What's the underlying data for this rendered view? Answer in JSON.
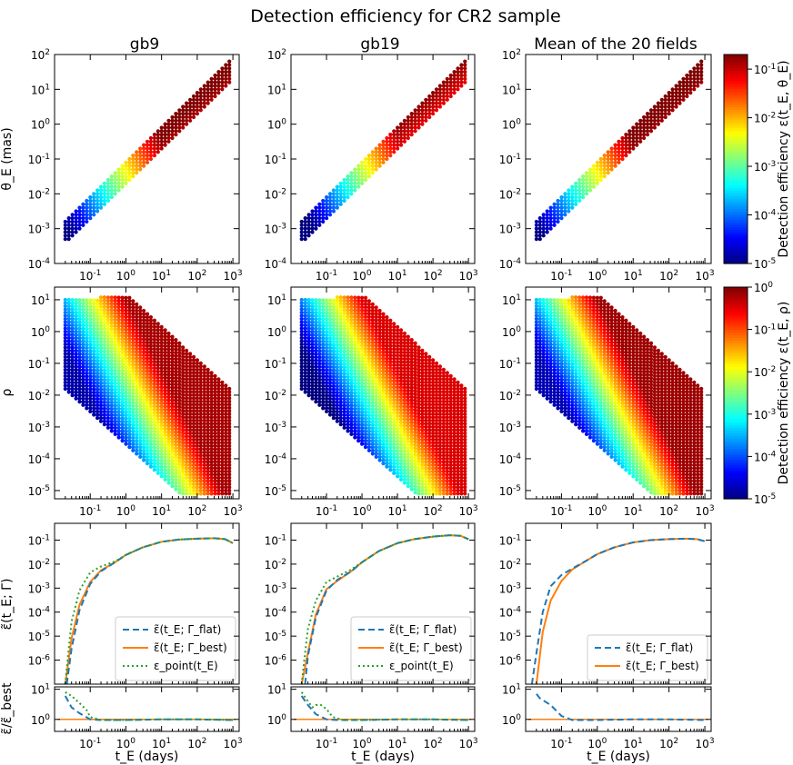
{
  "title": "Detection efficiency for CR2 sample",
  "columns": [
    "gb9",
    "gb19",
    "Mean of the 20 fields"
  ],
  "labels": {
    "xlabel": "t_E (days)",
    "row1_ylabel": "θ_E (mas)",
    "row2_ylabel": "ρ",
    "row3_ylabel": "ε̃(t_E; Γ)",
    "row4_ylabel": "ε̃/ε̃_best",
    "cbar1_label": "Detection efficiency ε(t_E, θ_E)",
    "cbar2_label": "Detection efficiency ε(t_E, ρ)"
  },
  "legend": {
    "flat": "ε̃(t_E; Γ_flat)",
    "best": "ε̃(t_E; Γ_best)",
    "point": "ε_point(t_E)"
  },
  "colors": {
    "flat": "#1f77b4",
    "best": "#ff7f0e",
    "point": "#2ca02c",
    "colormap": "jet"
  },
  "chart_data": [
    {
      "type": "heatmap",
      "panel": "theta_E vs t_E",
      "xscale": "log",
      "yscale": "log",
      "xlim": [
        0.01,
        1500
      ],
      "ylim": [
        0.0001,
        100
      ],
      "xticks": [
        "10^-1",
        "10^0",
        "10^1",
        "10^2",
        "10^3"
      ],
      "yticks": [
        "10^-4",
        "10^-3",
        "10^-2",
        "10^-1",
        "10^0",
        "10^1",
        "10^2"
      ],
      "colorbar": {
        "ticks": [
          "10^-5",
          "10^-4",
          "10^-3",
          "10^-2",
          "10^-1"
        ],
        "range": [
          1e-05,
          0.2
        ]
      },
      "grid_band": {
        "tE_range": [
          0.02,
          1000
        ],
        "log_thetaE_over_tE_range": [
          -1.7,
          -1.1
        ],
        "theta_E_min": 0.0004
      },
      "efficiency_shift_dex": {
        "gb9": 0.0,
        "gb19": -0.25,
        "Mean of the 20 fields": 0.05
      }
    },
    {
      "type": "heatmap",
      "panel": "rho vs t_E",
      "xscale": "log",
      "yscale": "log",
      "xlim": [
        0.01,
        1500
      ],
      "ylim": [
        5.5e-06,
        25
      ],
      "xticks": [
        "10^-1",
        "10^0",
        "10^1",
        "10^2",
        "10^3"
      ],
      "yticks": [
        "10^-5",
        "10^-4",
        "10^-3",
        "10^-2",
        "10^-1",
        "10^0",
        "10^1"
      ],
      "colorbar": {
        "ticks": [
          "10^-5",
          "10^-4",
          "10^-3",
          "10^-2",
          "10^-1",
          "10^0"
        ],
        "range": [
          1e-05,
          1
        ]
      },
      "grid_band": {
        "tE_range": [
          0.02,
          1000
        ],
        "rho_max": 12
      },
      "efficiency_shift_dex": {
        "gb9": 0.0,
        "gb19": -0.25,
        "Mean of the 20 fields": 0.05
      }
    },
    {
      "type": "line",
      "panel": "efficiency vs t_E",
      "xscale": "log",
      "yscale": "log",
      "xlim": [
        0.01,
        1500
      ],
      "ylim": [
        1e-07,
        0.5
      ],
      "yticks": [
        "10^-6",
        "10^-5",
        "10^-4",
        "10^-3",
        "10^-2",
        "10^-1"
      ],
      "series": {
        "gb9": {
          "best": {
            "x": [
              0.02,
              0.03,
              0.05,
              0.1,
              0.2,
              0.5,
              1,
              3,
              10,
              30,
              100,
              300,
              600,
              1000
            ],
            "y": [
              1e-07,
              8e-06,
              0.0002,
              0.0018,
              0.0055,
              0.012,
              0.024,
              0.05,
              0.085,
              0.105,
              0.115,
              0.12,
              0.11,
              0.075
            ]
          },
          "flat": {
            "x": [
              0.022,
              0.03,
              0.05,
              0.1,
              0.2,
              0.5,
              1,
              3,
              10,
              30,
              100,
              300,
              600,
              1000
            ],
            "y": [
              1e-07,
              3e-06,
              0.00012,
              0.0015,
              0.005,
              0.012,
              0.024,
              0.05,
              0.085,
              0.105,
              0.115,
              0.12,
              0.11,
              0.075
            ]
          },
          "point": {
            "x": [
              0.02,
              0.025,
              0.03,
              0.05,
              0.1,
              0.2,
              0.5,
              1,
              3,
              10,
              30,
              100,
              300,
              600,
              1000
            ],
            "y": [
              1e-07,
              3e-06,
              4e-05,
              0.0008,
              0.0045,
              0.008,
              0.013,
              0.024,
              0.05,
              0.085,
              0.105,
              0.115,
              0.12,
              0.11,
              0.075
            ]
          },
          "ratio_flat": {
            "x": [
              0.02,
              0.03,
              0.05,
              0.1,
              0.2,
              1,
              10,
              100,
              1000
            ],
            "y": [
              6,
              2.5,
              1.6,
              1.0,
              0.95,
              0.95,
              1.0,
              1.0,
              0.95
            ]
          },
          "ratio_point": {
            "x": [
              0.02,
              0.03,
              0.05,
              0.08,
              0.1,
              0.2,
              1,
              10,
              100,
              1000
            ],
            "y": [
              8,
              6,
              3.5,
              2.0,
              1.2,
              0.95,
              0.95,
              1.0,
              1.0,
              0.95
            ]
          }
        },
        "gb19": {
          "best": {
            "x": [
              0.02,
              0.03,
              0.05,
              0.1,
              0.2,
              0.5,
              1,
              3,
              10,
              30,
              100,
              300,
              600,
              1000
            ],
            "y": [
              1e-07,
              2e-06,
              8e-05,
              0.0009,
              0.002,
              0.005,
              0.012,
              0.035,
              0.075,
              0.11,
              0.14,
              0.16,
              0.15,
              0.11
            ]
          },
          "flat": {
            "x": [
              0.025,
              0.03,
              0.05,
              0.1,
              0.2,
              0.5,
              1,
              3,
              10,
              30,
              100,
              300,
              600,
              1000
            ],
            "y": [
              1e-07,
              1.5e-06,
              6e-05,
              0.0008,
              0.0022,
              0.005,
              0.012,
              0.035,
              0.075,
              0.11,
              0.14,
              0.16,
              0.15,
              0.11
            ]
          },
          "point": {
            "x": [
              0.02,
              0.025,
              0.03,
              0.05,
              0.1,
              0.2,
              0.5,
              1,
              3,
              10,
              30,
              100,
              300,
              600,
              1000
            ],
            "y": [
              1e-07,
              2e-06,
              2e-05,
              0.0003,
              0.0018,
              0.003,
              0.006,
              0.012,
              0.035,
              0.075,
              0.11,
              0.14,
              0.16,
              0.15,
              0.11
            ]
          },
          "ratio_flat": {
            "x": [
              0.02,
              0.03,
              0.05,
              0.1,
              0.2,
              1,
              10,
              100,
              1000
            ],
            "y": [
              6,
              3,
              1.5,
              1.0,
              0.95,
              0.95,
              1.0,
              1.0,
              0.95
            ]
          },
          "ratio_point": {
            "x": [
              0.02,
              0.03,
              0.04,
              0.05,
              0.07,
              0.1,
              0.15,
              0.3,
              1,
              10,
              100,
              1000
            ],
            "y": [
              8,
              4,
              2.5,
              3,
              3,
              2.2,
              1.2,
              0.95,
              0.95,
              1.0,
              1.0,
              0.95
            ]
          }
        },
        "Mean of the 20 fields": {
          "best": {
            "x": [
              0.02,
              0.03,
              0.05,
              0.1,
              0.2,
              0.5,
              1,
              3,
              10,
              30,
              100,
              300,
              600,
              1000
            ],
            "y": [
              1e-07,
              1.5e-05,
              0.0003,
              0.002,
              0.006,
              0.014,
              0.026,
              0.05,
              0.08,
              0.1,
              0.11,
              0.115,
              0.11,
              0.09
            ]
          },
          "flat": {
            "x": [
              0.015,
              0.02,
              0.03,
              0.05,
              0.1,
              0.2,
              0.5,
              1,
              3,
              10,
              30,
              100,
              300,
              600,
              1000
            ],
            "y": [
              1e-07,
              2e-06,
              0.0001,
              0.0012,
              0.0035,
              0.0065,
              0.014,
              0.026,
              0.05,
              0.08,
              0.1,
              0.11,
              0.115,
              0.11,
              0.09
            ]
          },
          "ratio_flat": {
            "x": [
              0.02,
              0.025,
              0.05,
              0.1,
              0.2,
              1,
              10,
              100,
              1000
            ],
            "y": [
              7,
              5,
              3,
              1.3,
              0.95,
              0.95,
              1.0,
              1.0,
              0.95
            ]
          }
        }
      }
    }
  ]
}
